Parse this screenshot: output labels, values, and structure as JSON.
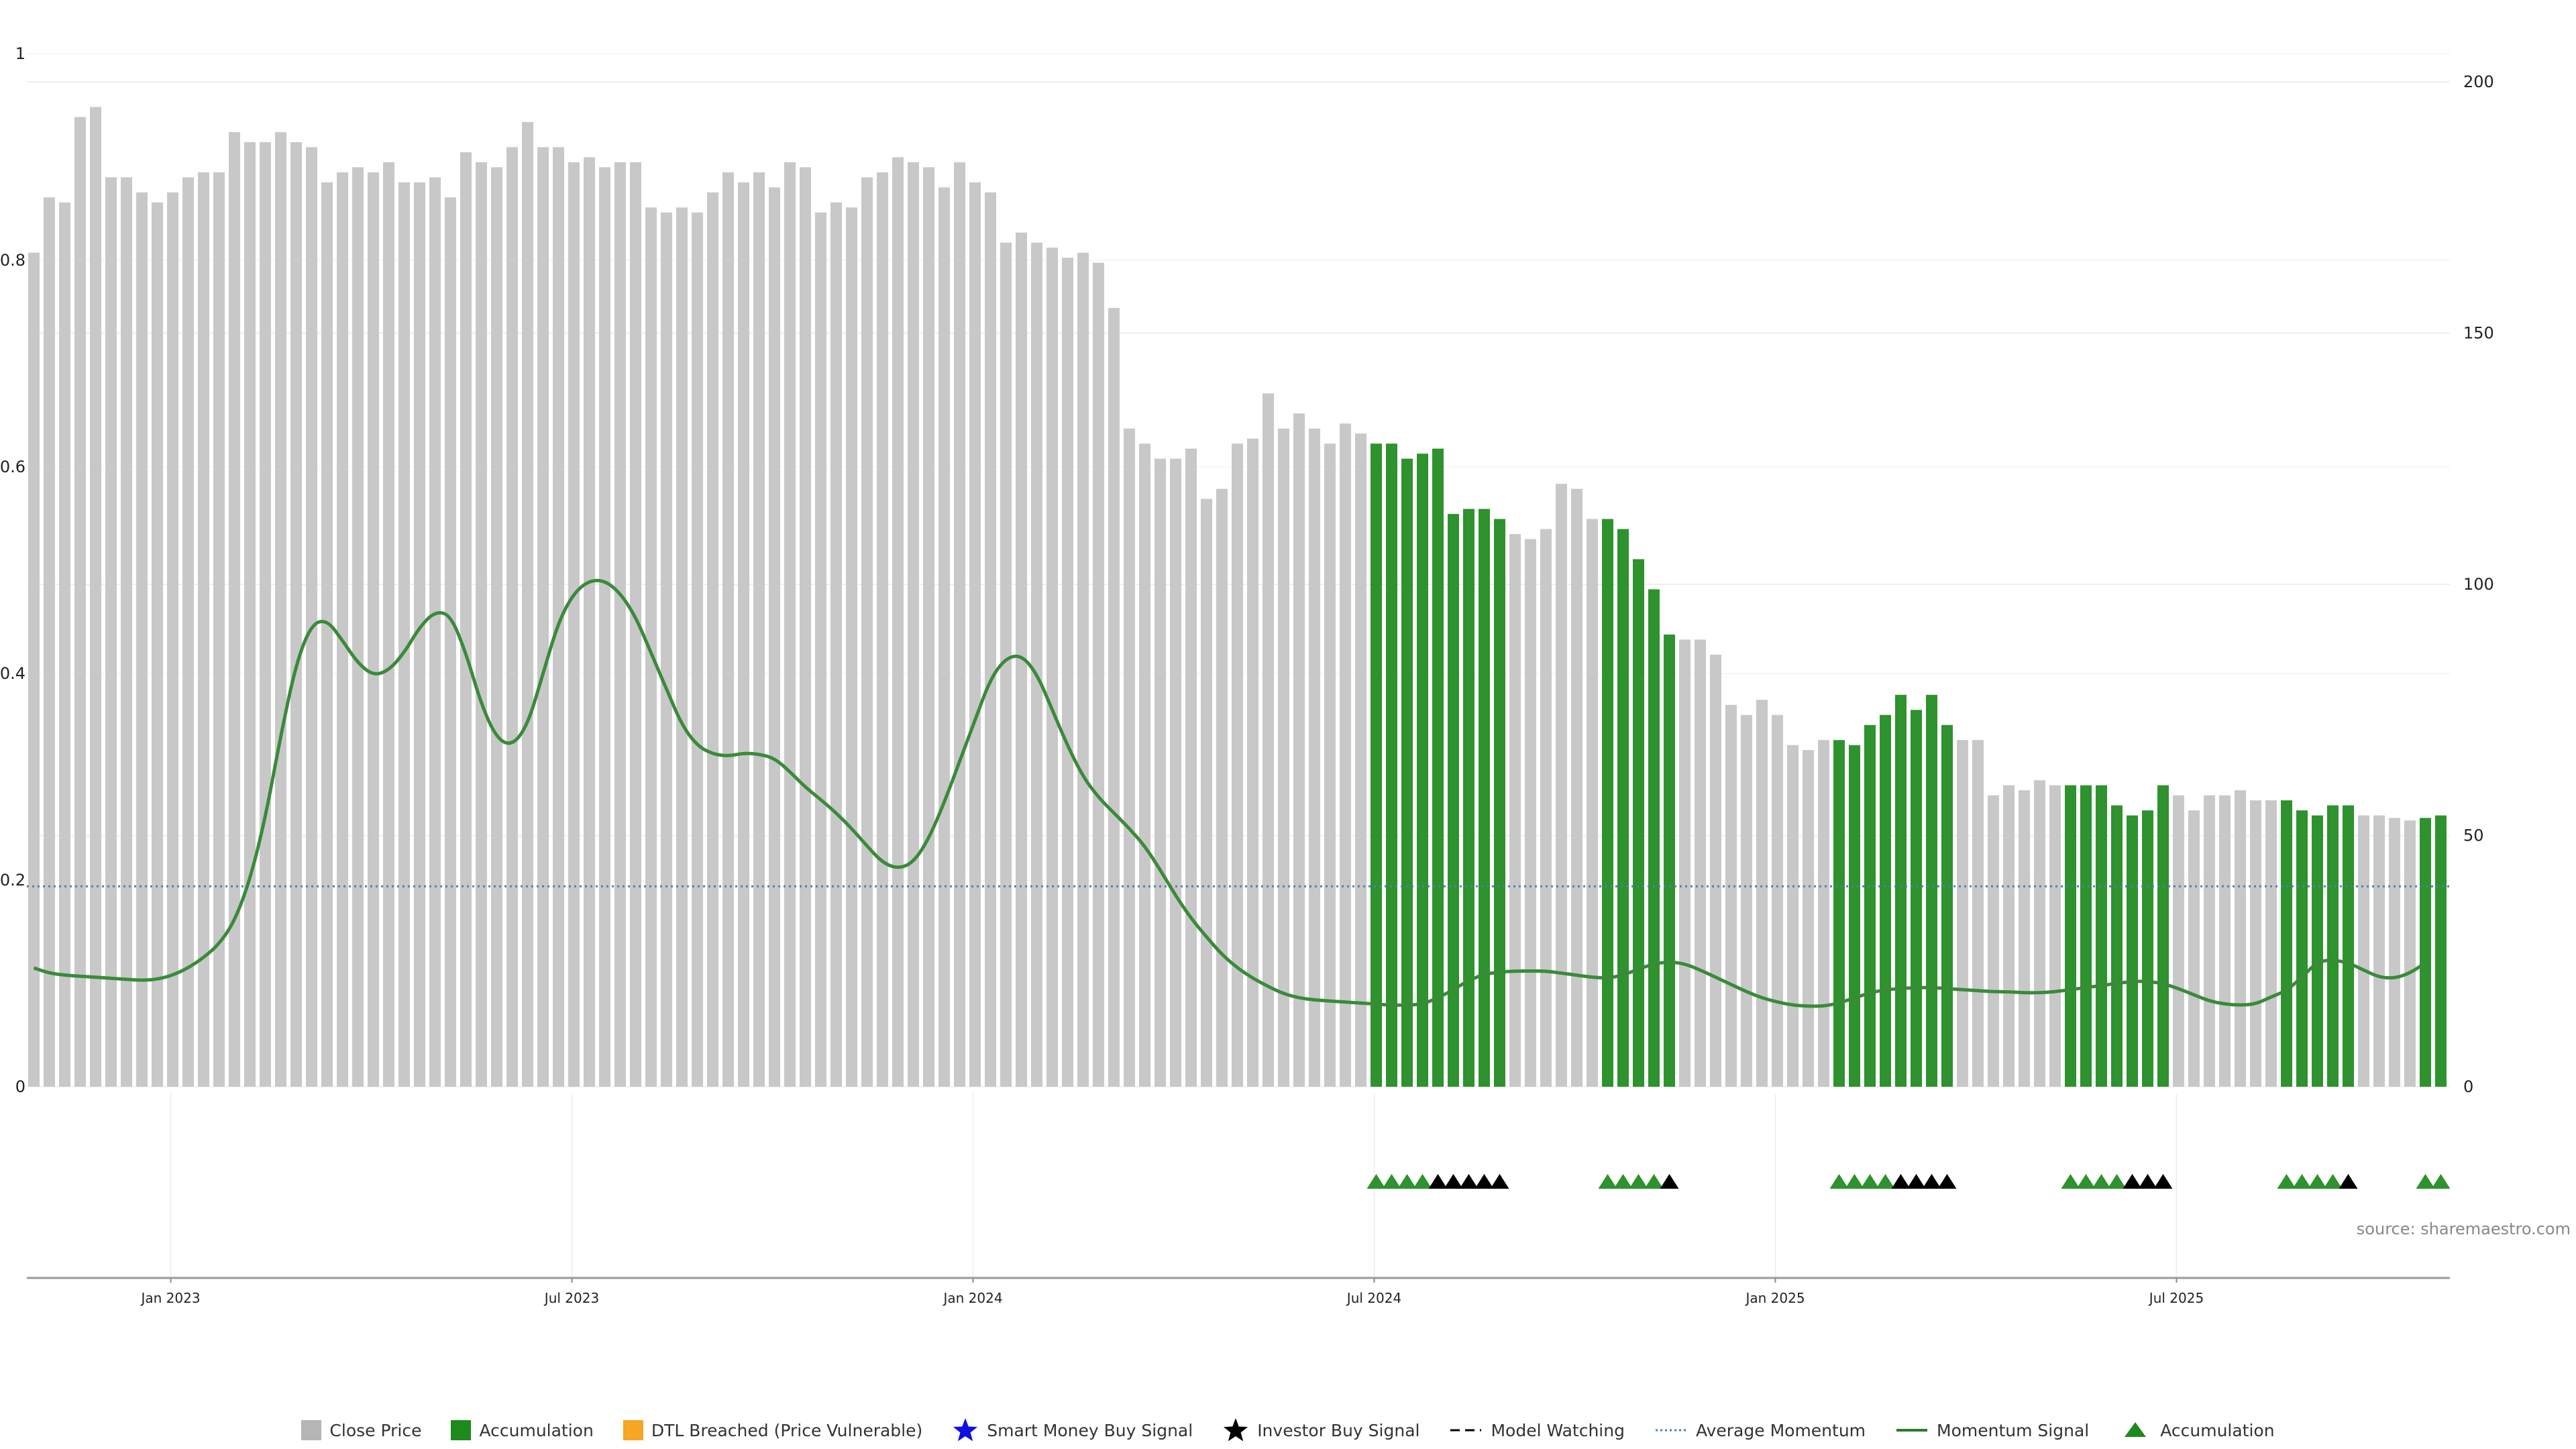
{
  "chart_data": {
    "type": "bar",
    "source": "source: sharemaestro.com",
    "x_tick_labels": [
      "Jan 2023",
      "Jul 2023",
      "Jan 2024",
      "Jul 2024",
      "Jan 2025",
      "Jul 2025"
    ],
    "left_axis": {
      "ticks": [
        "0",
        "0.2",
        "0.4",
        "0.6",
        "0.8",
        "1"
      ],
      "ylim": [
        0,
        1
      ]
    },
    "right_axis": {
      "ticks": [
        "0",
        "50",
        "100",
        "150",
        "200"
      ],
      "ylim": [
        0,
        200
      ]
    },
    "series_close_price": [
      166,
      177,
      176,
      193,
      195,
      181,
      181,
      178,
      176,
      178,
      181,
      182,
      182,
      190,
      188,
      188,
      190,
      188,
      187,
      180,
      182,
      183,
      182,
      184,
      180,
      180,
      181,
      177,
      186,
      184,
      183,
      187,
      192,
      187,
      187,
      184,
      185,
      183,
      184,
      184,
      175,
      174,
      175,
      174,
      178,
      182,
      180,
      182,
      179,
      184,
      183,
      174,
      176,
      175,
      181,
      182,
      185,
      184,
      183,
      179,
      184,
      180,
      178,
      168,
      170,
      168,
      167,
      165,
      166,
      164,
      155,
      131,
      128,
      125,
      125,
      127,
      117,
      119,
      128,
      129,
      138,
      131,
      134,
      131,
      128,
      132,
      130,
      128,
      128,
      125,
      126,
      127,
      114,
      115,
      115,
      113,
      110,
      109,
      111,
      120,
      119,
      113,
      113,
      111,
      105,
      99,
      90,
      89,
      89,
      86,
      76,
      74,
      77,
      74,
      68,
      67,
      69,
      69,
      68,
      72,
      74,
      78,
      75,
      78,
      72,
      69,
      69,
      58,
      60,
      59,
      61,
      60,
      60,
      60,
      60,
      56,
      54,
      55,
      60,
      58,
      55,
      58,
      58,
      59,
      57,
      57,
      57,
      55,
      54,
      56,
      56,
      54,
      54,
      53.5,
      53,
      53.5,
      54
    ],
    "accumulation_ranges": [
      [
        87,
        95
      ],
      [
        102,
        106
      ],
      [
        117,
        124
      ],
      [
        132,
        138
      ],
      [
        146,
        150
      ],
      [
        155,
        156
      ]
    ],
    "accumulation_markers": [
      {
        "green": 4,
        "black": 5
      },
      {
        "green": 4,
        "black": 1
      },
      {
        "green": 4,
        "black": 4
      },
      {
        "green": 4,
        "black": 3
      },
      {
        "green": 4,
        "black": 1
      },
      {
        "green": 2,
        "black": 0
      }
    ],
    "average_momentum": 0.194,
    "momentum_signal": [
      [
        0,
        0.115
      ],
      [
        1,
        0.11
      ],
      [
        2,
        0.108
      ],
      [
        3,
        0.107
      ],
      [
        4,
        0.106
      ],
      [
        5,
        0.105
      ],
      [
        6,
        0.104
      ],
      [
        7,
        0.103
      ],
      [
        8,
        0.104
      ],
      [
        9,
        0.108
      ],
      [
        10,
        0.115
      ],
      [
        11,
        0.125
      ],
      [
        12,
        0.138
      ],
      [
        13,
        0.16
      ],
      [
        14,
        0.2
      ],
      [
        15,
        0.26
      ],
      [
        16,
        0.34
      ],
      [
        17,
        0.41
      ],
      [
        18,
        0.448
      ],
      [
        19,
        0.452
      ],
      [
        20,
        0.432
      ],
      [
        21,
        0.41
      ],
      [
        22,
        0.398
      ],
      [
        23,
        0.403
      ],
      [
        24,
        0.42
      ],
      [
        25,
        0.445
      ],
      [
        26,
        0.46
      ],
      [
        27,
        0.457
      ],
      [
        28,
        0.42
      ],
      [
        29,
        0.37
      ],
      [
        30,
        0.337
      ],
      [
        31,
        0.33
      ],
      [
        32,
        0.35
      ],
      [
        33,
        0.4
      ],
      [
        34,
        0.45
      ],
      [
        35,
        0.478
      ],
      [
        36,
        0.49
      ],
      [
        37,
        0.49
      ],
      [
        38,
        0.478
      ],
      [
        39,
        0.455
      ],
      [
        40,
        0.42
      ],
      [
        41,
        0.385
      ],
      [
        42,
        0.35
      ],
      [
        43,
        0.33
      ],
      [
        44,
        0.322
      ],
      [
        45,
        0.32
      ],
      [
        46,
        0.323
      ],
      [
        47,
        0.322
      ],
      [
        48,
        0.318
      ],
      [
        49,
        0.305
      ],
      [
        50,
        0.29
      ],
      [
        51,
        0.278
      ],
      [
        52,
        0.265
      ],
      [
        53,
        0.25
      ],
      [
        54,
        0.233
      ],
      [
        55,
        0.217
      ],
      [
        56,
        0.211
      ],
      [
        57,
        0.217
      ],
      [
        58,
        0.24
      ],
      [
        59,
        0.275
      ],
      [
        60,
        0.315
      ],
      [
        61,
        0.355
      ],
      [
        62,
        0.395
      ],
      [
        63,
        0.415
      ],
      [
        64,
        0.418
      ],
      [
        65,
        0.4
      ],
      [
        66,
        0.365
      ],
      [
        67,
        0.33
      ],
      [
        68,
        0.3
      ],
      [
        69,
        0.28
      ],
      [
        70,
        0.265
      ],
      [
        71,
        0.25
      ],
      [
        72,
        0.233
      ],
      [
        73,
        0.21
      ],
      [
        74,
        0.185
      ],
      [
        75,
        0.163
      ],
      [
        76,
        0.145
      ],
      [
        77,
        0.128
      ],
      [
        78,
        0.115
      ],
      [
        79,
        0.105
      ],
      [
        80,
        0.097
      ],
      [
        81,
        0.09
      ],
      [
        82,
        0.086
      ],
      [
        83,
        0.084
      ],
      [
        84,
        0.083
      ],
      [
        85,
        0.082
      ],
      [
        86,
        0.081
      ],
      [
        87,
        0.08
      ],
      [
        88,
        0.079
      ],
      [
        89,
        0.079
      ],
      [
        90,
        0.08
      ],
      [
        91,
        0.086
      ],
      [
        92,
        0.094
      ],
      [
        93,
        0.103
      ],
      [
        94,
        0.109
      ],
      [
        95,
        0.111
      ],
      [
        96,
        0.112
      ],
      [
        97,
        0.112
      ],
      [
        98,
        0.112
      ],
      [
        99,
        0.11
      ],
      [
        100,
        0.108
      ],
      [
        101,
        0.106
      ],
      [
        102,
        0.105
      ],
      [
        103,
        0.108
      ],
      [
        104,
        0.114
      ],
      [
        105,
        0.119
      ],
      [
        106,
        0.121
      ],
      [
        107,
        0.119
      ],
      [
        108,
        0.113
      ],
      [
        109,
        0.106
      ],
      [
        110,
        0.099
      ],
      [
        111,
        0.092
      ],
      [
        112,
        0.086
      ],
      [
        113,
        0.082
      ],
      [
        114,
        0.079
      ],
      [
        115,
        0.078
      ],
      [
        116,
        0.078
      ],
      [
        117,
        0.081
      ],
      [
        118,
        0.086
      ],
      [
        119,
        0.091
      ],
      [
        120,
        0.094
      ],
      [
        121,
        0.095
      ],
      [
        122,
        0.096
      ],
      [
        123,
        0.096
      ],
      [
        124,
        0.095
      ],
      [
        125,
        0.094
      ],
      [
        126,
        0.093
      ],
      [
        127,
        0.092
      ],
      [
        128,
        0.092
      ],
      [
        129,
        0.091
      ],
      [
        130,
        0.091
      ],
      [
        131,
        0.092
      ],
      [
        132,
        0.094
      ],
      [
        133,
        0.096
      ],
      [
        134,
        0.098
      ],
      [
        135,
        0.1
      ],
      [
        136,
        0.102
      ],
      [
        137,
        0.102
      ],
      [
        138,
        0.1
      ],
      [
        139,
        0.095
      ],
      [
        140,
        0.089
      ],
      [
        141,
        0.083
      ],
      [
        142,
        0.08
      ],
      [
        143,
        0.079
      ],
      [
        144,
        0.08
      ],
      [
        145,
        0.087
      ],
      [
        146,
        0.093
      ],
      [
        147,
        0.106
      ],
      [
        148,
        0.121
      ],
      [
        149,
        0.123
      ],
      [
        150,
        0.12
      ],
      [
        151,
        0.113
      ],
      [
        152,
        0.106
      ],
      [
        153,
        0.105
      ],
      [
        154,
        0.11
      ],
      [
        155,
        0.12
      ]
    ]
  },
  "legend": [
    {
      "label": "Close Price",
      "icon": "square",
      "color": "#b5b5b5"
    },
    {
      "label": "Accumulation",
      "icon": "square",
      "color": "#1c8a1c"
    },
    {
      "label": "DTL Breached (Price Vulnerable)",
      "icon": "square",
      "color": "#f5a623"
    },
    {
      "label": "Smart Money Buy Signal",
      "icon": "star",
      "color": "#1010e0"
    },
    {
      "label": "Investor Buy Signal",
      "icon": "star",
      "color": "#000000"
    },
    {
      "label": "Model Watching",
      "icon": "dash",
      "color": "#000000"
    },
    {
      "label": "Average Momentum",
      "icon": "dot",
      "color": "#4a7fb0"
    },
    {
      "label": "Momentum Signal",
      "icon": "line",
      "color": "#2a7d2a"
    },
    {
      "label": "Accumulation",
      "icon": "triangle",
      "color": "#1c8a1c"
    }
  ],
  "colors": {
    "close": "#c8c8c8",
    "accum": "#2e922e",
    "momentum": "#3a8a3a",
    "avg": "#4f7fae"
  }
}
